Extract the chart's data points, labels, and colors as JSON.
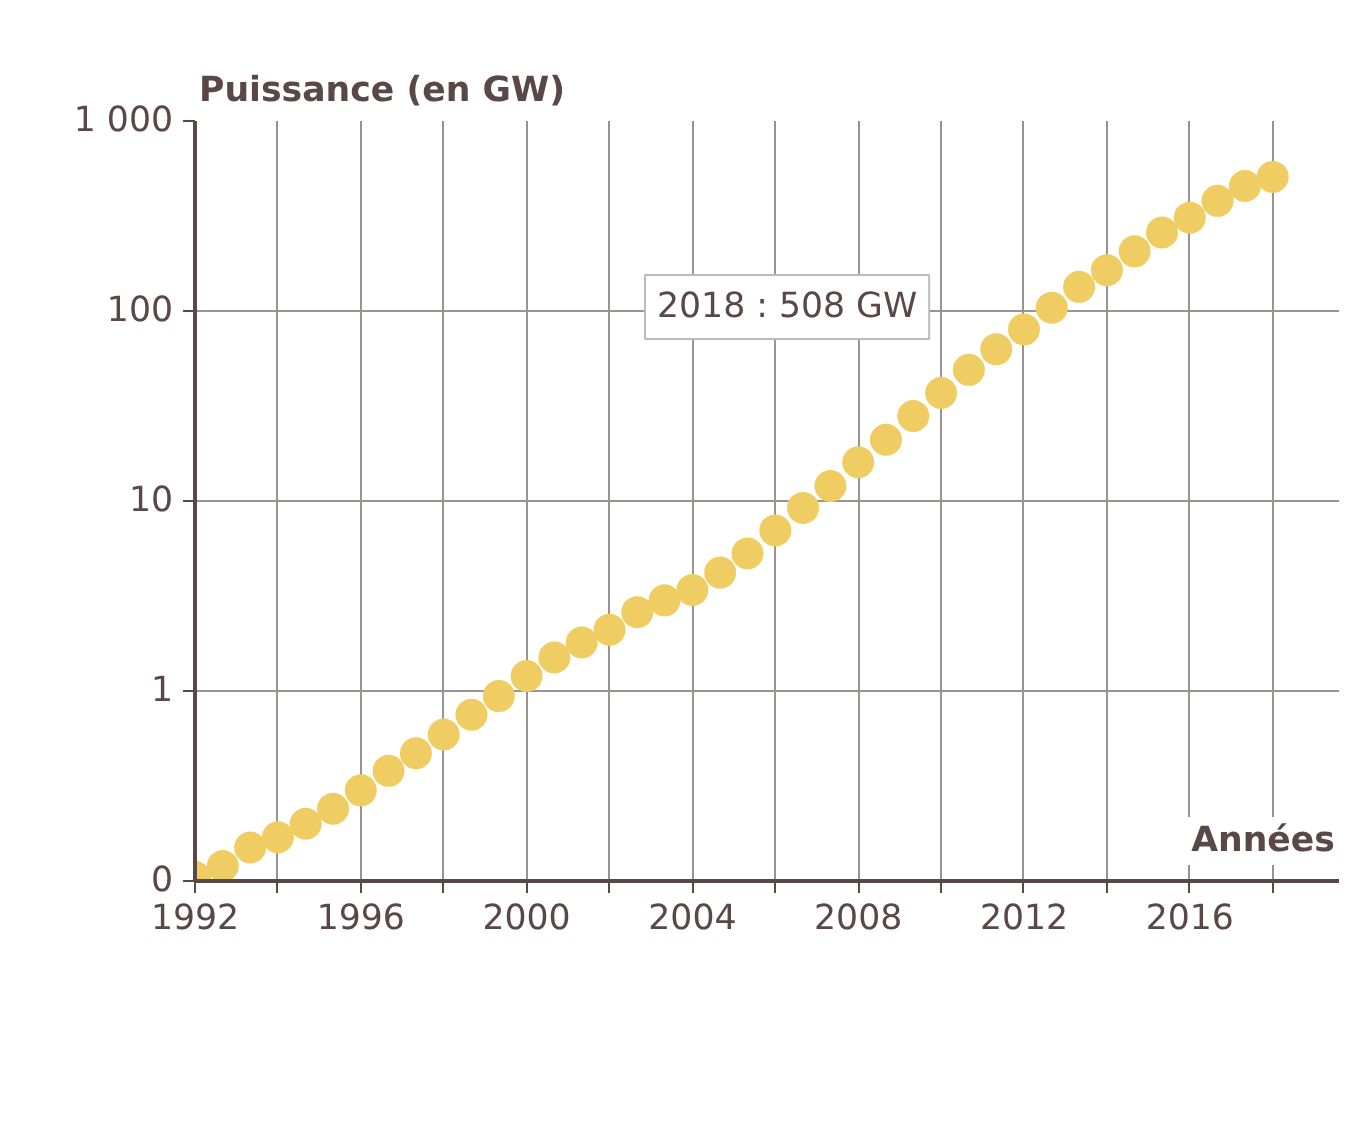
{
  "chart_data": {
    "type": "scatter",
    "xlabel": "Années",
    "ylabel": "Puissance (en GW)",
    "x": [
      1992,
      1992.67,
      1993.33,
      1994,
      1994.67,
      1995.33,
      1996,
      1996.67,
      1997.33,
      1998,
      1998.67,
      1999.33,
      2000,
      2000.67,
      2001.33,
      2002,
      2002.67,
      2003.33,
      2004,
      2004.67,
      2005.33,
      2006,
      2006.67,
      2007.33,
      2008,
      2008.67,
      2009.33,
      2010,
      2010.67,
      2011.33,
      2012,
      2012.67,
      2013.33,
      2014,
      2014.67,
      2015.33,
      2016,
      2016.67,
      2017.33,
      2018
    ],
    "series": [
      {
        "color": "#f0cd62",
        "values": [
          0.105,
          0.12,
          0.15,
          0.17,
          0.2,
          0.24,
          0.3,
          0.38,
          0.47,
          0.59,
          0.75,
          0.94,
          1.2,
          1.5,
          1.8,
          2.1,
          2.6,
          3.0,
          3.4,
          4.2,
          5.3,
          7.0,
          9.2,
          12,
          16,
          21,
          28,
          37,
          49,
          63,
          80,
          104,
          134,
          164,
          206,
          259,
          310,
          380,
          455,
          508
        ]
      }
    ],
    "log": "y",
    "marker": "circle",
    "grid": true,
    "xlim": [
      1992,
      2019.6
    ],
    "ylim": [
      0.1,
      1000
    ],
    "xticks": [
      1992,
      {
        "value": 1994,
        "label": null
      },
      1996,
      {
        "value": 1998,
        "label": null
      },
      2000,
      {
        "value": 2002,
        "label": null
      },
      2004,
      {
        "value": 2006,
        "label": null
      },
      2008,
      {
        "value": 2010,
        "label": null
      },
      2012,
      {
        "value": 2014,
        "label": null
      },
      2016,
      {
        "value": 2018,
        "label": null
      }
    ],
    "yticks": [
      {
        "value": 0.1,
        "label": "0"
      },
      1,
      10,
      100,
      {
        "value": 1000,
        "label": "1 000"
      }
    ],
    "annotations": [
      "2018 : 508 GW"
    ]
  }
}
